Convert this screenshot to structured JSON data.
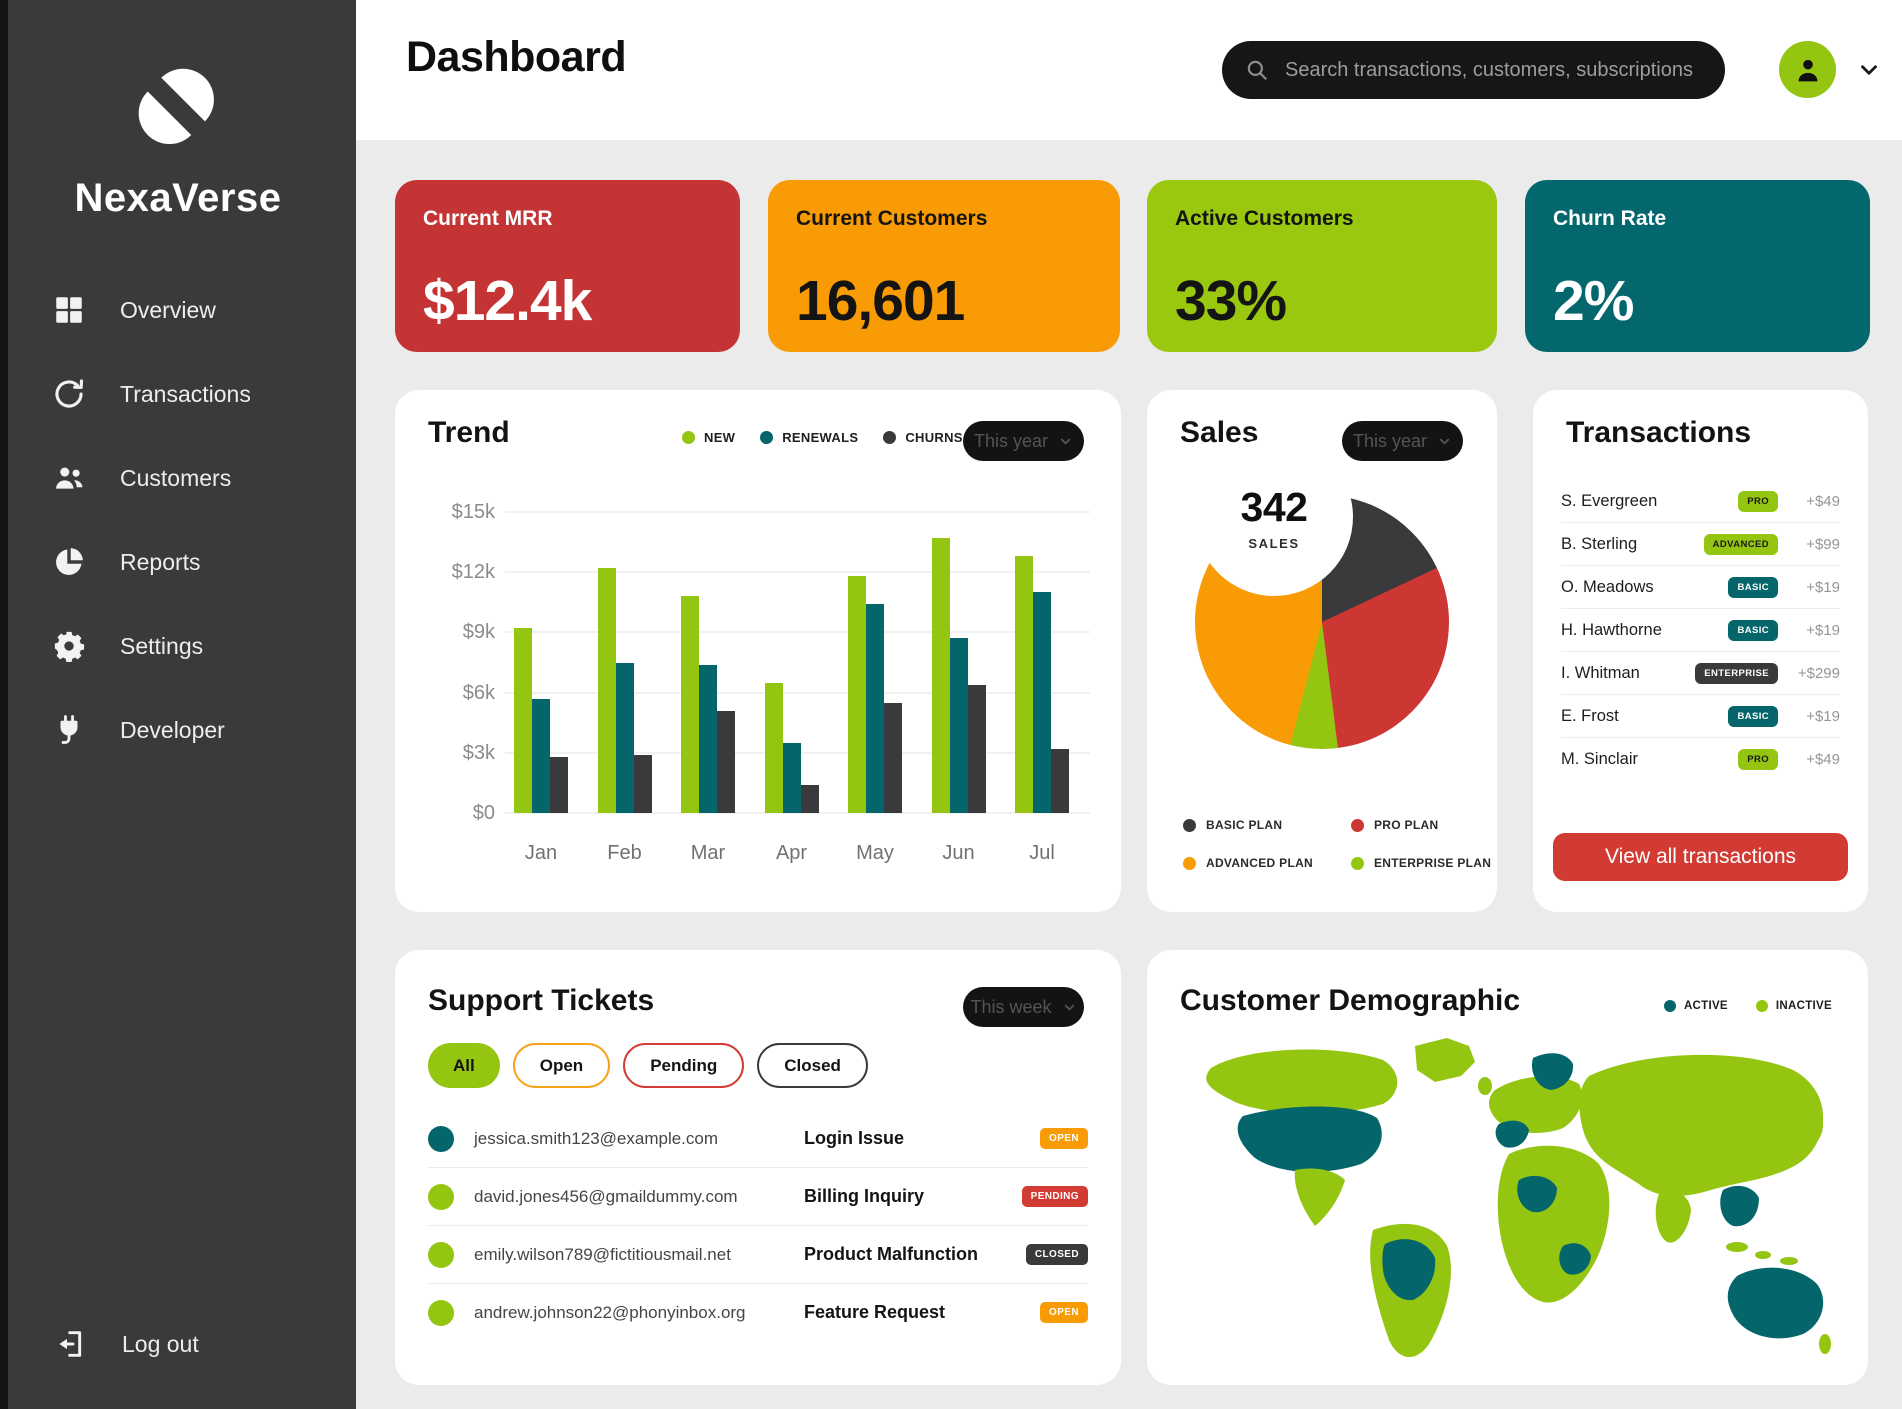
{
  "brand": {
    "name": "NexaVerse"
  },
  "sidebar": {
    "items": [
      {
        "icon": "grid-icon",
        "label": "Overview"
      },
      {
        "icon": "sync-icon",
        "label": "Transactions"
      },
      {
        "icon": "users-icon",
        "label": "Customers"
      },
      {
        "icon": "pie-icon",
        "label": "Reports"
      },
      {
        "icon": "gear-icon",
        "label": "Settings"
      },
      {
        "icon": "plug-icon",
        "label": "Developer"
      }
    ],
    "logout": {
      "icon": "logout-icon",
      "label": "Log out"
    }
  },
  "header": {
    "title": "Dashboard",
    "search_placeholder": "Search transactions, customers, subscriptions"
  },
  "kpis": [
    {
      "label": "Current MRR",
      "value": "$12.4k",
      "bg": "#c43434",
      "text_color": "#ffffff"
    },
    {
      "label": "Current Customers",
      "value": "16,601",
      "bg": "#f89b05",
      "text_color": "#141414"
    },
    {
      "label": "Active Customers",
      "value": "33%",
      "bg": "#99c80f",
      "text_color": "#141414"
    },
    {
      "label": "Churn Rate",
      "value": "2%",
      "bg": "#03676d",
      "text_color": "#ffffff"
    }
  ],
  "trend": {
    "title": "Trend",
    "filter_label": "This year"
  },
  "sales": {
    "title": "Sales",
    "filter_label": "This year",
    "center_value": "342",
    "center_label": "SALES",
    "legend": [
      {
        "label": "BASIC PLAN",
        "color": "#3a393b"
      },
      {
        "label": "PRO PLAN",
        "color": "#cc3734"
      },
      {
        "label": "ADVANCED PLAN",
        "color": "#f89b05"
      },
      {
        "label": "ENTERPRISE PLAN",
        "color": "#94c511"
      }
    ]
  },
  "transactions": {
    "title": "Transactions",
    "view_all_label": "View all transactions",
    "rows": [
      {
        "name": "S. Evergreen",
        "plan": "PRO",
        "plan_bg": "#94c511",
        "plan_text": "#1a1a1a",
        "amount": "+$49"
      },
      {
        "name": "B. Sterling",
        "plan": "ADVANCED",
        "plan_bg": "#94c511",
        "plan_text": "#1a1a1a",
        "amount": "+$99"
      },
      {
        "name": "O. Meadows",
        "plan": "BASIC",
        "plan_bg": "#04666b",
        "plan_text": "#ffffff",
        "amount": "+$19"
      },
      {
        "name": "H. Hawthorne",
        "plan": "BASIC",
        "plan_bg": "#04666b",
        "plan_text": "#ffffff",
        "amount": "+$19"
      },
      {
        "name": "I. Whitman",
        "plan": "ENTERPRISE",
        "plan_bg": "#3a393b",
        "plan_text": "#ffffff",
        "amount": "+$299"
      },
      {
        "name": "E. Frost",
        "plan": "BASIC",
        "plan_bg": "#04666b",
        "plan_text": "#ffffff",
        "amount": "+$19"
      },
      {
        "name": "M. Sinclair",
        "plan": "PRO",
        "plan_bg": "#94c511",
        "plan_text": "#1a1a1a",
        "amount": "+$49"
      }
    ]
  },
  "support": {
    "title": "Support Tickets",
    "filter_label": "This week",
    "filters": [
      {
        "label": "All",
        "style": "filled",
        "color": "#94c511"
      },
      {
        "label": "Open",
        "style": "outline",
        "color": "#f8a11a"
      },
      {
        "label": "Pending",
        "style": "outline",
        "color": "#d23b33"
      },
      {
        "label": "Closed",
        "style": "outline",
        "color": "#3a393b"
      }
    ],
    "tickets": [
      {
        "email": "jessica.smith123@example.com",
        "subject": "Login Issue",
        "status": "OPEN",
        "status_bg": "#f89b05",
        "dot": "#04666b"
      },
      {
        "email": "david.jones456@gmaildummy.com",
        "subject": "Billing Inquiry",
        "status": "PENDING",
        "status_bg": "#d23b33",
        "dot": "#94c511"
      },
      {
        "email": "emily.wilson789@fictitiousmail.net",
        "subject": "Product Malfunction",
        "status": "CLOSED",
        "status_bg": "#3a393b",
        "dot": "#94c511"
      },
      {
        "email": "andrew.johnson22@phonyinbox.org",
        "subject": "Feature Request",
        "status": "OPEN",
        "status_bg": "#f89b05",
        "dot": "#94c511"
      }
    ]
  },
  "demographic": {
    "title": "Customer Demographic",
    "legend": [
      {
        "label": "ACTIVE",
        "color": "#04666b"
      },
      {
        "label": "INACTIVE",
        "color": "#94c511"
      }
    ]
  },
  "chart_data": [
    {
      "id": "trend-bars",
      "type": "bar",
      "title": "Trend",
      "categories": [
        "Jan",
        "Feb",
        "Mar",
        "Apr",
        "May",
        "Jun",
        "Jul"
      ],
      "series": [
        {
          "name": "NEW",
          "color": "#94c511",
          "values": [
            9200,
            12200,
            10800,
            6500,
            11800,
            13700,
            12800
          ]
        },
        {
          "name": "RENEWALS",
          "color": "#04666b",
          "values": [
            5700,
            7500,
            7400,
            3500,
            10400,
            8700,
            11000
          ]
        },
        {
          "name": "CHURNS",
          "color": "#3a393b",
          "values": [
            2800,
            2900,
            5100,
            1400,
            5500,
            6400,
            3200
          ]
        }
      ],
      "ylabel": "USD",
      "ylim": [
        0,
        15000
      ],
      "ytick_labels": [
        "$15k",
        "$12k",
        "$9k",
        "$6k",
        "$3k",
        "$0"
      ],
      "grid": true,
      "legend_position": "top"
    },
    {
      "id": "sales-donut",
      "type": "pie",
      "title": "Sales",
      "center_value": "342",
      "center_label": "SALES",
      "slices": [
        {
          "label": "BASIC PLAN",
          "color": "#3a393b",
          "percent": 18
        },
        {
          "label": "PRO PLAN",
          "color": "#cc3734",
          "percent": 30
        },
        {
          "label": "ENTERPRISE PLAN",
          "color": "#94c511",
          "percent": 6
        },
        {
          "label": "ADVANCED PLAN",
          "color": "#f89b05",
          "percent": 46
        }
      ]
    }
  ]
}
